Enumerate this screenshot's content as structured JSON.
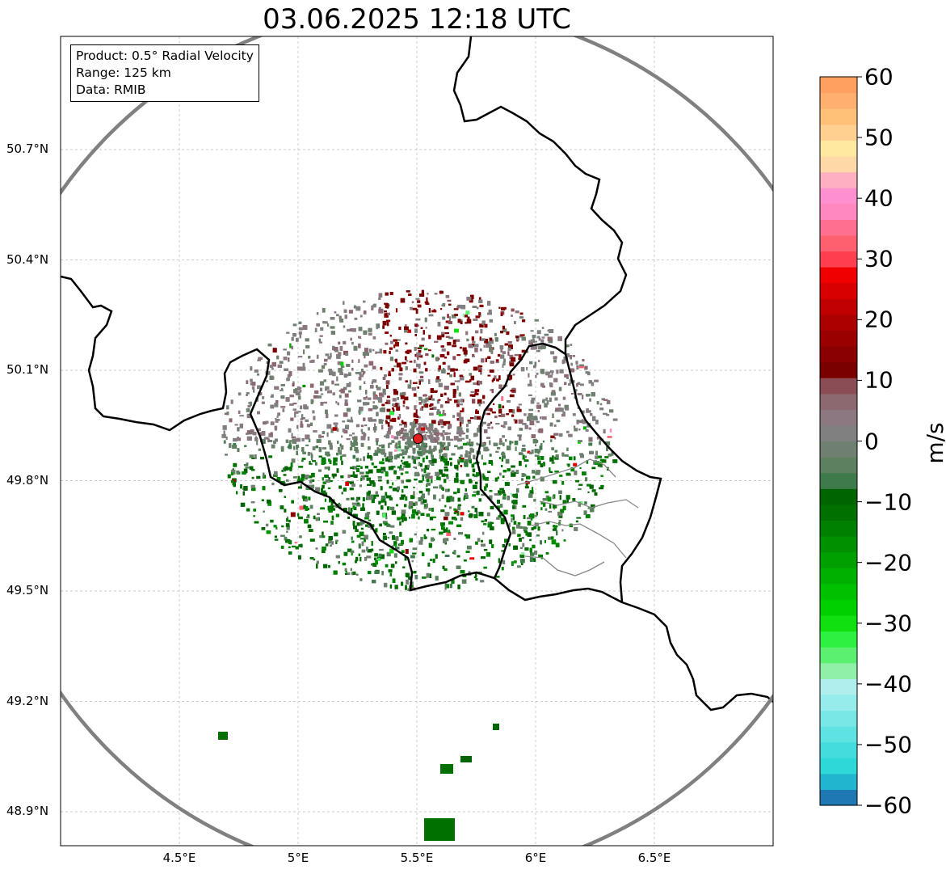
{
  "title": "03.06.2025 12:18 UTC",
  "info_box": {
    "product": "Product: 0.5° Radial Velocity",
    "range": "Range: 125 km",
    "data": "Data: RMIB"
  },
  "axes": {
    "lat_ticks": [
      "50.7°N",
      "50.4°N",
      "50.1°N",
      "49.8°N",
      "49.5°N",
      "49.2°N",
      "48.9°N"
    ],
    "lon_ticks": [
      "4.5°E",
      "5°E",
      "5.5°E",
      "6°E",
      "6.5°E"
    ],
    "lat_values": [
      50.7,
      50.4,
      50.1,
      49.8,
      49.5,
      49.2,
      48.9
    ],
    "lon_values": [
      4.5,
      5.0,
      5.5,
      6.0,
      6.5
    ],
    "lat_range": [
      48.8,
      51.0
    ],
    "lon_range": [
      4.0,
      7.0
    ]
  },
  "radar": {
    "site_lon": 5.505,
    "site_lat": 49.914,
    "range_km": 125,
    "marker_color": "#e02020",
    "range_ring_color": "#808080"
  },
  "colorbar": {
    "label": "m/s",
    "min": -60,
    "max": 60,
    "tick_labels": [
      "60",
      "50",
      "40",
      "30",
      "20",
      "10",
      "0",
      "−10",
      "−20",
      "−30",
      "−40",
      "−50",
      "−60"
    ],
    "tick_values": [
      60,
      50,
      40,
      30,
      20,
      10,
      0,
      -10,
      -20,
      -30,
      -40,
      -50,
      -60
    ],
    "colors": [
      "#1f77b4",
      "#22b5d0",
      "#2fd8d8",
      "#44dcdc",
      "#5fe2e2",
      "#7ae7e7",
      "#96ebeb",
      "#b0eeee",
      "#90f0a8",
      "#5cf070",
      "#2ef040",
      "#10e010",
      "#00d000",
      "#00c000",
      "#00b000",
      "#00a000",
      "#009000",
      "#008000",
      "#007000",
      "#006400",
      "#3f7a4a",
      "#5c8060",
      "#708070",
      "#808080",
      "#8c7880",
      "#8c6870",
      "#8a4c55",
      "#7a0000",
      "#8a0000",
      "#9a0000",
      "#aa0000",
      "#c00000",
      "#d80000",
      "#f00000",
      "#ff4050",
      "#ff6070",
      "#ff7090",
      "#ff88c0",
      "#ff90d0",
      "#ffb0c0",
      "#ffd8a8",
      "#ffe8a0",
      "#ffd090",
      "#ffc078",
      "#ffb070",
      "#ffa060"
    ]
  }
}
